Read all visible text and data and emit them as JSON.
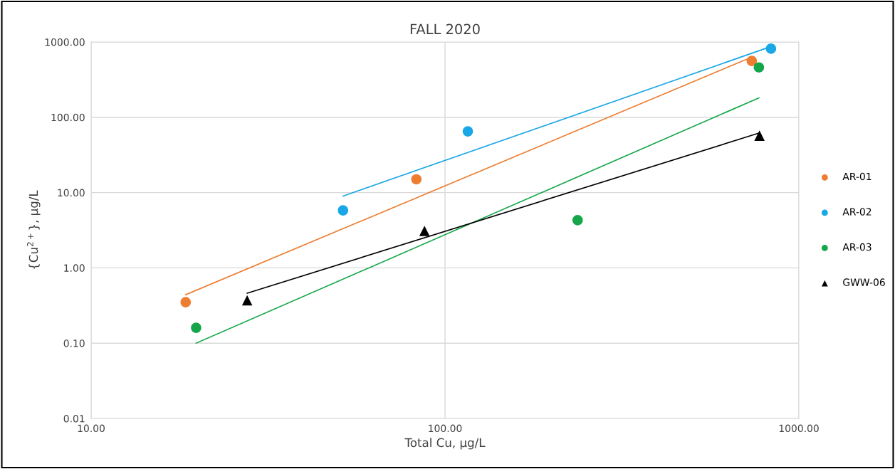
{
  "chart_data": {
    "type": "scatter",
    "title": "FALL 2020",
    "xlabel": "Total Cu, μg/L",
    "ylabel": "{Cu$^{2+}$}, μg/L",
    "log": "xy",
    "grid": true,
    "legend": "right",
    "xlim": [
      10,
      1000
    ],
    "ylim": [
      0.01,
      1000
    ],
    "xticks": [
      {
        "value": 10,
        "label": "10.00"
      },
      {
        "value": 100,
        "label": "100.00"
      },
      {
        "value": 1000,
        "label": "1000.00"
      }
    ],
    "yticks": [
      {
        "value": 0.01,
        "label": "0.01"
      },
      {
        "value": 0.1,
        "label": "0.10"
      },
      {
        "value": 1,
        "label": "1.00"
      },
      {
        "value": 10,
        "label": "10.00"
      },
      {
        "value": 100,
        "label": "100.00"
      },
      {
        "value": 1000,
        "label": "1000.00"
      }
    ],
    "series": [
      {
        "name": "AR-01",
        "marker": "circle",
        "color": "#ed7d31",
        "x": [
          18.5,
          83,
          736
        ],
        "values": [
          0.35,
          15,
          560
        ]
      },
      {
        "name": "AR-02",
        "marker": "circle",
        "color": "#1aa7e6",
        "x": [
          51.5,
          116,
          834
        ],
        "values": [
          5.8,
          65,
          815
        ]
      },
      {
        "name": "AR-03",
        "marker": "circle",
        "color": "#16a64a",
        "x": [
          19.8,
          237,
          771
        ],
        "values": [
          0.16,
          4.3,
          460
        ]
      },
      {
        "name": "GWW-06",
        "marker": "triangle",
        "color": "#000000",
        "x": [
          27.6,
          87.5,
          774
        ],
        "values": [
          0.37,
          3.1,
          57
        ]
      },
      {
        "type": "line",
        "color": "#ed7d31",
        "x": [
          18.5,
          736
        ],
        "values": [
          0.44,
          630
        ]
      },
      {
        "type": "line",
        "color": "#1aa7e6",
        "x": [
          51.5,
          834
        ],
        "values": [
          9.0,
          870
        ]
      },
      {
        "type": "line",
        "color": "#16a64a",
        "x": [
          19.8,
          771
        ],
        "values": [
          0.1,
          181
        ]
      },
      {
        "type": "line",
        "color": "#000000",
        "x": [
          27.6,
          774
        ],
        "values": [
          0.46,
          62
        ]
      }
    ]
  }
}
